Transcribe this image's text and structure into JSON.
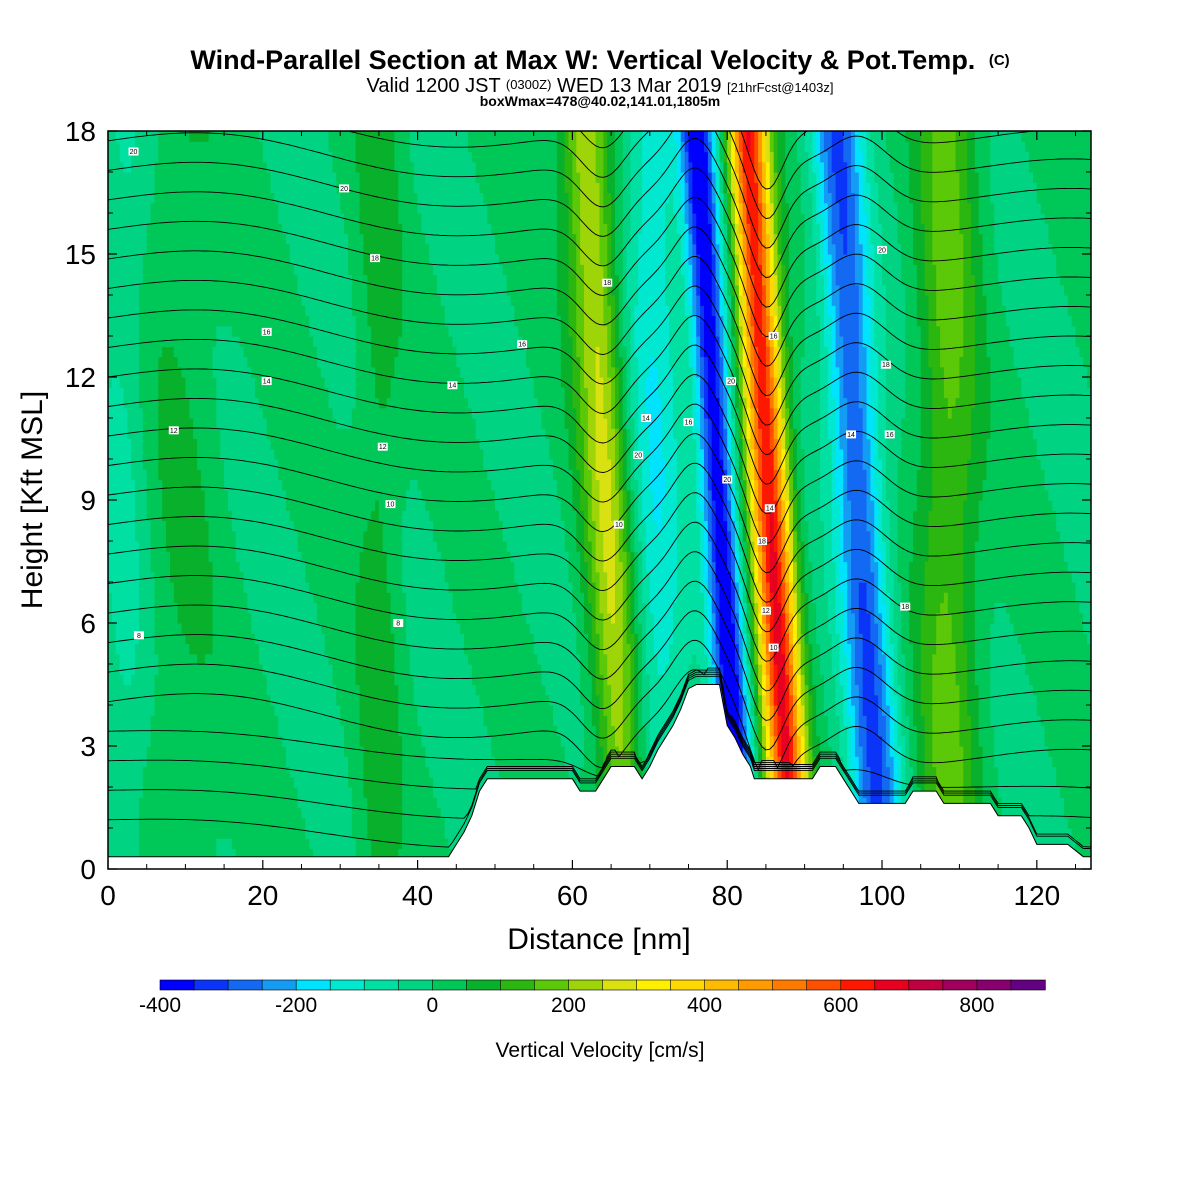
{
  "chart_data": {
    "type": "heatmap",
    "title_main": "Wind-Parallel Section at Max W: Vertical Velocity & Pot.Temp.",
    "title_mark": "(C)",
    "subtitle_valid": "Valid 1200 JST",
    "subtitle_utc": "(0300Z)",
    "subtitle_date": "WED 13 Mar 2019",
    "subtitle_fcst": "[21hrFcst@1403z]",
    "box_info": "boxWmax=478@40.02,141.01,1805m",
    "xlabel": "Distance [nm]",
    "ylabel": "Height [Kft MSL]",
    "xlim": [
      0,
      127
    ],
    "ylim": [
      0,
      18
    ],
    "xticks": [
      0,
      20,
      40,
      60,
      80,
      100,
      120
    ],
    "yticks": [
      0,
      3,
      6,
      9,
      12,
      15,
      18
    ],
    "colorbar": {
      "label": "Vertical Velocity [cm/s]",
      "min": -400,
      "max": 900,
      "step": 50,
      "tick_values": [
        -400,
        -200,
        0,
        200,
        400,
        600,
        800
      ],
      "tick_labels": [
        "-400",
        "-200",
        "0",
        "200",
        "400",
        "600",
        "800"
      ],
      "colors": [
        "#0000ff",
        "#0a35f8",
        "#1469f3",
        "#149cf5",
        "#00e3ff",
        "#00e8d0",
        "#00e0a3",
        "#00d482",
        "#00c858",
        "#08b12c",
        "#2cb710",
        "#5bc808",
        "#9ed508",
        "#d9e210",
        "#ffef00",
        "#ffd900",
        "#ffbb00",
        "#ff9b00",
        "#ff7a00",
        "#ff5000",
        "#ff1800",
        "#e80020",
        "#c00040",
        "#a0005c",
        "#880070",
        "#640082"
      ]
    },
    "w_features": [
      {
        "x": 64.5,
        "w": 260,
        "width": 3.2
      },
      {
        "x": 70.5,
        "w": -140,
        "width": 4.0
      },
      {
        "x": 79.0,
        "w": -400,
        "width": 2.2
      },
      {
        "x": 85.5,
        "w": 650,
        "width": 2.6
      },
      {
        "x": 97.0,
        "w": -300,
        "width": 3.2
      },
      {
        "x": 108.5,
        "w": 160,
        "width": 4.0
      },
      {
        "x": 9.5,
        "w": 50,
        "width": 5.0
      },
      {
        "x": 35.0,
        "w": 70,
        "width": 3.0
      },
      {
        "x": 2.0,
        "w": -60,
        "width": 3.0
      }
    ],
    "terrain": [
      [
        0,
        0.3
      ],
      [
        44,
        0.3
      ],
      [
        45,
        0.6
      ],
      [
        46,
        0.9
      ],
      [
        47,
        1.3
      ],
      [
        48,
        1.9
      ],
      [
        49,
        2.2
      ],
      [
        56,
        2.2
      ],
      [
        57,
        2.2
      ],
      [
        60,
        2.2
      ],
      [
        61,
        1.9
      ],
      [
        63,
        1.9
      ],
      [
        64,
        2.2
      ],
      [
        65,
        2.5
      ],
      [
        68,
        2.5
      ],
      [
        69,
        2.2
      ],
      [
        70,
        2.5
      ],
      [
        71,
        2.9
      ],
      [
        72,
        3.2
      ],
      [
        73,
        3.5
      ],
      [
        74,
        3.9
      ],
      [
        75,
        4.4
      ],
      [
        76,
        4.5
      ],
      [
        79,
        4.5
      ],
      [
        80,
        3.5
      ],
      [
        81,
        3.2
      ],
      [
        82,
        2.8
      ],
      [
        83,
        2.5
      ],
      [
        83.5,
        2.2
      ],
      [
        91,
        2.2
      ],
      [
        92,
        2.5
      ],
      [
        94,
        2.5
      ],
      [
        95,
        2.2
      ],
      [
        96,
        1.9
      ],
      [
        97,
        1.6
      ],
      [
        103,
        1.6
      ],
      [
        104,
        1.9
      ],
      [
        107,
        1.9
      ],
      [
        108,
        1.6
      ],
      [
        114,
        1.6
      ],
      [
        115,
        1.3
      ],
      [
        118,
        1.3
      ],
      [
        119,
        1.0
      ],
      [
        120,
        0.6
      ],
      [
        124,
        0.6
      ],
      [
        126,
        0.3
      ],
      [
        127,
        0.3
      ]
    ],
    "theta_labels": [
      {
        "x": 3.3,
        "y": 17.5,
        "text": "20"
      },
      {
        "x": 30.5,
        "y": 16.6,
        "text": "20"
      },
      {
        "x": 34.5,
        "y": 14.9,
        "text": "18"
      },
      {
        "x": 20.5,
        "y": 13.1,
        "text": "16"
      },
      {
        "x": 53.5,
        "y": 12.8,
        "text": "16"
      },
      {
        "x": 20.5,
        "y": 11.9,
        "text": "14"
      },
      {
        "x": 44.5,
        "y": 11.8,
        "text": "14"
      },
      {
        "x": 8.5,
        "y": 10.7,
        "text": "12"
      },
      {
        "x": 35.5,
        "y": 10.3,
        "text": "12"
      },
      {
        "x": 36.5,
        "y": 8.9,
        "text": "10"
      },
      {
        "x": 4.0,
        "y": 5.7,
        "text": "8"
      },
      {
        "x": 37.5,
        "y": 6.0,
        "text": "8"
      },
      {
        "x": 64.5,
        "y": 14.3,
        "text": "18"
      },
      {
        "x": 69.5,
        "y": 11.0,
        "text": "14"
      },
      {
        "x": 75.0,
        "y": 10.9,
        "text": "16"
      },
      {
        "x": 68.5,
        "y": 10.1,
        "text": "20"
      },
      {
        "x": 66.0,
        "y": 8.4,
        "text": "10"
      },
      {
        "x": 80.5,
        "y": 11.9,
        "text": "20"
      },
      {
        "x": 86.0,
        "y": 13.0,
        "text": "16"
      },
      {
        "x": 80.0,
        "y": 9.5,
        "text": "20"
      },
      {
        "x": 85.5,
        "y": 8.8,
        "text": "14"
      },
      {
        "x": 84.5,
        "y": 8.0,
        "text": "18"
      },
      {
        "x": 85.0,
        "y": 6.3,
        "text": "12"
      },
      {
        "x": 86.0,
        "y": 5.4,
        "text": "10"
      },
      {
        "x": 100.0,
        "y": 15.1,
        "text": "20"
      },
      {
        "x": 100.5,
        "y": 12.3,
        "text": "18"
      },
      {
        "x": 96.0,
        "y": 10.6,
        "text": "14"
      },
      {
        "x": 101.0,
        "y": 10.6,
        "text": "16"
      },
      {
        "x": 103.0,
        "y": 6.4,
        "text": "18"
      }
    ]
  }
}
